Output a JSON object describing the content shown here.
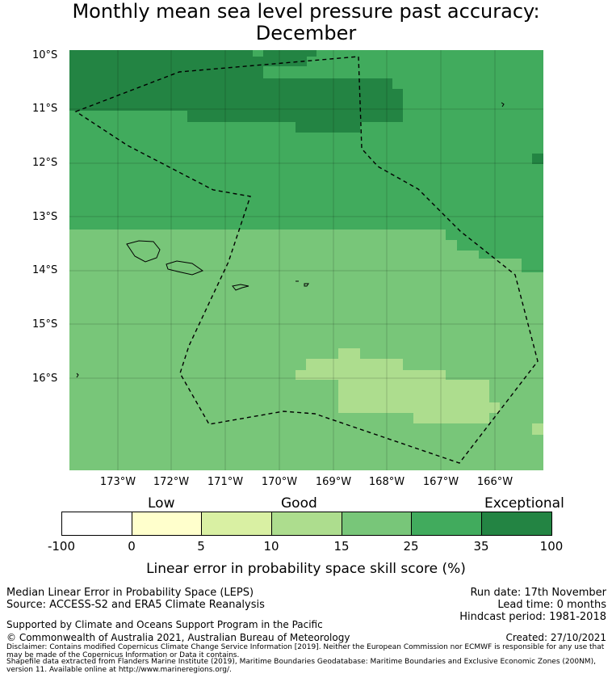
{
  "title": {
    "line1": "Monthly mean sea level pressure past accuracy:",
    "line2": "December"
  },
  "map": {
    "lat_labels": [
      "10°S",
      "11°S",
      "12°S",
      "13°S",
      "14°S",
      "15°S",
      "16°S"
    ],
    "lon_labels": [
      "173°W",
      "172°W",
      "171°W",
      "170°W",
      "169°W",
      "168°W",
      "167°W",
      "166°W"
    ],
    "colors": {
      "exceptional": "#238443",
      "very_good": "#41ab5d",
      "good_high": "#78c679",
      "good": "#addd8e",
      "low_high": "#d9f0a3",
      "low": "#ffffcc",
      "none": "#ffffff"
    },
    "region_outline": "dashed"
  },
  "colorbar": {
    "category_labels": [
      "Low",
      "Good",
      "Exceptional"
    ],
    "ticks": [
      "-100",
      "0",
      "5",
      "10",
      "15",
      "25",
      "35",
      "100"
    ],
    "colors": [
      "#ffffff",
      "#ffffcc",
      "#d9f0a3",
      "#addd8e",
      "#78c679",
      "#41ab5d",
      "#238443"
    ],
    "title": "Linear error in probability space skill score (%)"
  },
  "footer": {
    "method": "Median Linear Error in Probability Space (LEPS)",
    "source": "Source: ACCESS-S2 and ERA5 Climate Reanalysis",
    "support": "Supported by Climate and Oceans Support Program in the Pacific",
    "copyright": "© Commonwealth of Australia 2021, Australian Bureau of Meteorology",
    "run_date": "Run date: 17th November",
    "lead_time": "Lead time: 0 months",
    "hindcast": "Hindcast period: 1981-2018",
    "created": "Created: 27/10/2021",
    "disclaimer": "Disclaimer: Contains modified Copernicus Climate Change Service Information [2019]. Neither the European Commission nor ECMWF is responsible for any use that may be made of the Copernicus Information or Data it contains.",
    "shapefile": "Shapefile data extracted from Flanders Marine Institute (2019), Maritime Boundaries Geodatabase: Maritime Boundaries and Exclusive Economic Zones (200NM), version 11. Available online at http://www.marineregions.org/."
  }
}
